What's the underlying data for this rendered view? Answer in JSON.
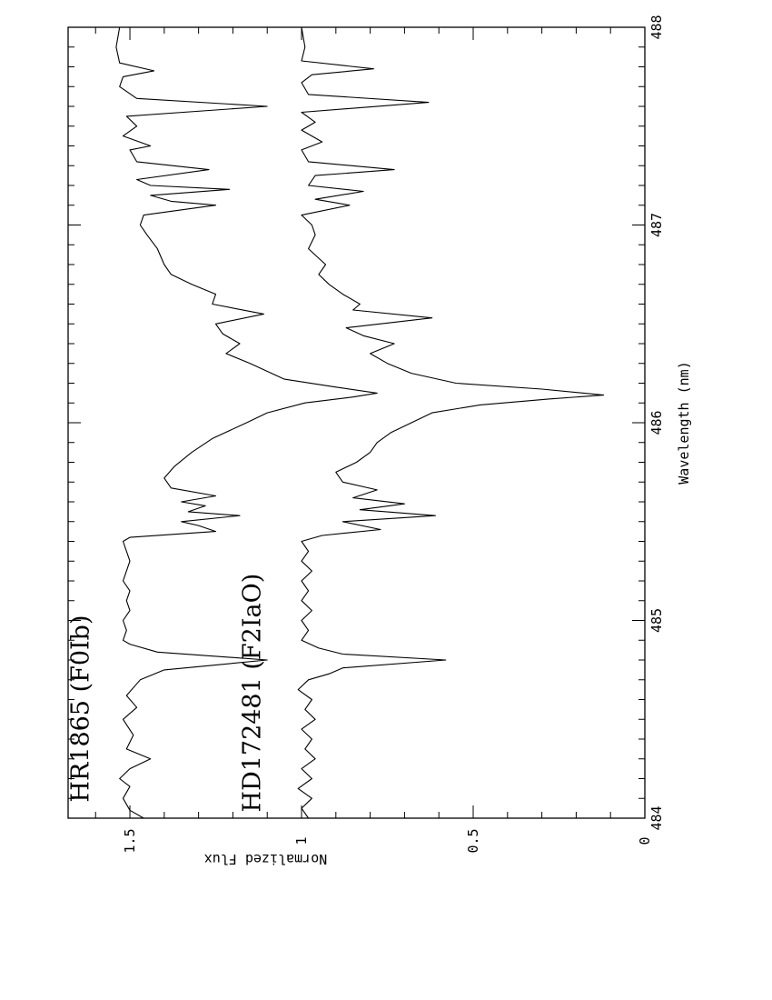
{
  "chart_data": {
    "type": "line",
    "xlabel": "Wavelength (nm)",
    "ylabel": "Normalized Flux",
    "xlim": [
      484,
      488
    ],
    "ylim": [
      0,
      1.68
    ],
    "x_ticks": [
      "484",
      "485",
      "486",
      "487",
      "488"
    ],
    "y_ticks": [
      "0",
      "0.5",
      "1",
      "1.5"
    ],
    "grid": false,
    "orientation": "rotated 90 degrees counter-clockwise",
    "series": [
      {
        "name": "HR1865 (F0Ib)",
        "points": [
          [
            484.0,
            1.46
          ],
          [
            484.04,
            1.5
          ],
          [
            484.1,
            1.52
          ],
          [
            484.16,
            1.5
          ],
          [
            484.2,
            1.53
          ],
          [
            484.25,
            1.5
          ],
          [
            484.3,
            1.44
          ],
          [
            484.35,
            1.51
          ],
          [
            484.42,
            1.49
          ],
          [
            484.5,
            1.52
          ],
          [
            484.56,
            1.48
          ],
          [
            484.62,
            1.51
          ],
          [
            484.7,
            1.47
          ],
          [
            484.75,
            1.4
          ],
          [
            484.8,
            1.1
          ],
          [
            484.84,
            1.42
          ],
          [
            484.88,
            1.5
          ],
          [
            484.9,
            1.52
          ],
          [
            484.95,
            1.51
          ],
          [
            485.0,
            1.52
          ],
          [
            485.05,
            1.5
          ],
          [
            485.1,
            1.51
          ],
          [
            485.15,
            1.5
          ],
          [
            485.2,
            1.52
          ],
          [
            485.3,
            1.5
          ],
          [
            485.4,
            1.52
          ],
          [
            485.42,
            1.5
          ],
          [
            485.45,
            1.25
          ],
          [
            485.48,
            1.3
          ],
          [
            485.5,
            1.35
          ],
          [
            485.53,
            1.18
          ],
          [
            485.55,
            1.33
          ],
          [
            485.58,
            1.28
          ],
          [
            485.6,
            1.35
          ],
          [
            485.63,
            1.25
          ],
          [
            485.67,
            1.38
          ],
          [
            485.72,
            1.4
          ],
          [
            485.78,
            1.37
          ],
          [
            485.85,
            1.32
          ],
          [
            485.92,
            1.26
          ],
          [
            486.0,
            1.16
          ],
          [
            486.05,
            1.1
          ],
          [
            486.1,
            0.99
          ],
          [
            486.13,
            0.85
          ],
          [
            486.15,
            0.78
          ],
          [
            486.18,
            0.9
          ],
          [
            486.22,
            1.05
          ],
          [
            486.3,
            1.15
          ],
          [
            486.35,
            1.22
          ],
          [
            486.4,
            1.18
          ],
          [
            486.45,
            1.23
          ],
          [
            486.5,
            1.25
          ],
          [
            486.55,
            1.11
          ],
          [
            486.6,
            1.26
          ],
          [
            486.65,
            1.25
          ],
          [
            486.7,
            1.32
          ],
          [
            486.75,
            1.38
          ],
          [
            486.8,
            1.4
          ],
          [
            486.88,
            1.42
          ],
          [
            486.95,
            1.45
          ],
          [
            487.0,
            1.47
          ],
          [
            487.05,
            1.46
          ],
          [
            487.1,
            1.25
          ],
          [
            487.12,
            1.38
          ],
          [
            487.15,
            1.44
          ],
          [
            487.18,
            1.21
          ],
          [
            487.2,
            1.44
          ],
          [
            487.23,
            1.48
          ],
          [
            487.28,
            1.27
          ],
          [
            487.32,
            1.48
          ],
          [
            487.38,
            1.5
          ],
          [
            487.4,
            1.44
          ],
          [
            487.45,
            1.52
          ],
          [
            487.5,
            1.48
          ],
          [
            487.55,
            1.51
          ],
          [
            487.6,
            1.1
          ],
          [
            487.64,
            1.48
          ],
          [
            487.7,
            1.53
          ],
          [
            487.75,
            1.52
          ],
          [
            487.78,
            1.43
          ],
          [
            487.82,
            1.53
          ],
          [
            487.9,
            1.54
          ],
          [
            488.0,
            1.53
          ]
        ]
      },
      {
        "name": "HD172481 (F2IaO)",
        "points": [
          [
            484.0,
            0.98
          ],
          [
            484.05,
            1.0
          ],
          [
            484.1,
            0.97
          ],
          [
            484.15,
            1.01
          ],
          [
            484.2,
            0.97
          ],
          [
            484.25,
            1.0
          ],
          [
            484.3,
            0.96
          ],
          [
            484.35,
            0.99
          ],
          [
            484.4,
            0.97
          ],
          [
            484.45,
            1.0
          ],
          [
            484.5,
            0.96
          ],
          [
            484.55,
            0.99
          ],
          [
            484.6,
            0.97
          ],
          [
            484.65,
            1.01
          ],
          [
            484.7,
            0.98
          ],
          [
            484.73,
            0.92
          ],
          [
            484.76,
            0.88
          ],
          [
            484.8,
            0.58
          ],
          [
            484.83,
            0.88
          ],
          [
            484.86,
            0.95
          ],
          [
            484.9,
            1.0
          ],
          [
            484.95,
            0.98
          ],
          [
            485.0,
            1.0
          ],
          [
            485.05,
            0.97
          ],
          [
            485.1,
            1.0
          ],
          [
            485.15,
            0.98
          ],
          [
            485.2,
            1.0
          ],
          [
            485.25,
            0.97
          ],
          [
            485.3,
            1.0
          ],
          [
            485.35,
            0.98
          ],
          [
            485.4,
            1.0
          ],
          [
            485.43,
            0.94
          ],
          [
            485.46,
            0.77
          ],
          [
            485.5,
            0.88
          ],
          [
            485.53,
            0.61
          ],
          [
            485.56,
            0.83
          ],
          [
            485.59,
            0.7
          ],
          [
            485.62,
            0.85
          ],
          [
            485.66,
            0.78
          ],
          [
            485.7,
            0.88
          ],
          [
            485.75,
            0.9
          ],
          [
            485.8,
            0.84
          ],
          [
            485.85,
            0.8
          ],
          [
            485.9,
            0.78
          ],
          [
            485.95,
            0.74
          ],
          [
            486.0,
            0.68
          ],
          [
            486.05,
            0.62
          ],
          [
            486.09,
            0.48
          ],
          [
            486.12,
            0.28
          ],
          [
            486.14,
            0.12
          ],
          [
            486.17,
            0.3
          ],
          [
            486.2,
            0.55
          ],
          [
            486.25,
            0.68
          ],
          [
            486.3,
            0.75
          ],
          [
            486.35,
            0.8
          ],
          [
            486.4,
            0.73
          ],
          [
            486.44,
            0.82
          ],
          [
            486.48,
            0.87
          ],
          [
            486.53,
            0.62
          ],
          [
            486.57,
            0.85
          ],
          [
            486.6,
            0.83
          ],
          [
            486.65,
            0.88
          ],
          [
            486.7,
            0.92
          ],
          [
            486.75,
            0.95
          ],
          [
            486.8,
            0.93
          ],
          [
            486.88,
            0.98
          ],
          [
            486.95,
            0.96
          ],
          [
            487.0,
            0.97
          ],
          [
            487.05,
            1.0
          ],
          [
            487.1,
            0.86
          ],
          [
            487.13,
            0.96
          ],
          [
            487.17,
            0.82
          ],
          [
            487.2,
            0.98
          ],
          [
            487.25,
            0.96
          ],
          [
            487.28,
            0.73
          ],
          [
            487.32,
            0.98
          ],
          [
            487.38,
            1.0
          ],
          [
            487.42,
            0.94
          ],
          [
            487.48,
            1.0
          ],
          [
            487.52,
            0.96
          ],
          [
            487.57,
            1.0
          ],
          [
            487.62,
            0.63
          ],
          [
            487.66,
            0.98
          ],
          [
            487.72,
            1.0
          ],
          [
            487.76,
            0.97
          ],
          [
            487.79,
            0.79
          ],
          [
            487.83,
            1.0
          ],
          [
            487.9,
            0.99
          ],
          [
            488.0,
            1.0
          ]
        ]
      }
    ]
  }
}
